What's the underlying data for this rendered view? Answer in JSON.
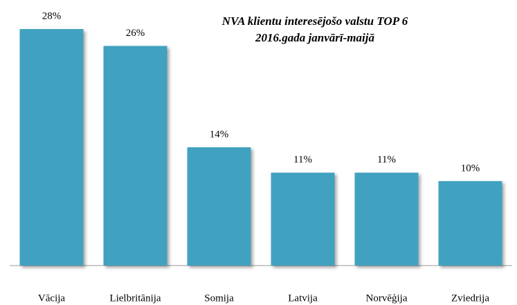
{
  "chart_data": {
    "type": "bar",
    "title": "NVA klientu interesējošo valstu TOP 6",
    "subtitle": "2016.gada janvārī-maijā",
    "categories": [
      "Vācija",
      "Lielbritānija",
      "Somija",
      "Latvija",
      "Norvēģija",
      "Zviedrija"
    ],
    "values": [
      28,
      26,
      14,
      11,
      11,
      10
    ],
    "value_labels": [
      "28%",
      "26%",
      "14%",
      "11%",
      "11%",
      "10%"
    ],
    "color": "#41a2c0"
  }
}
